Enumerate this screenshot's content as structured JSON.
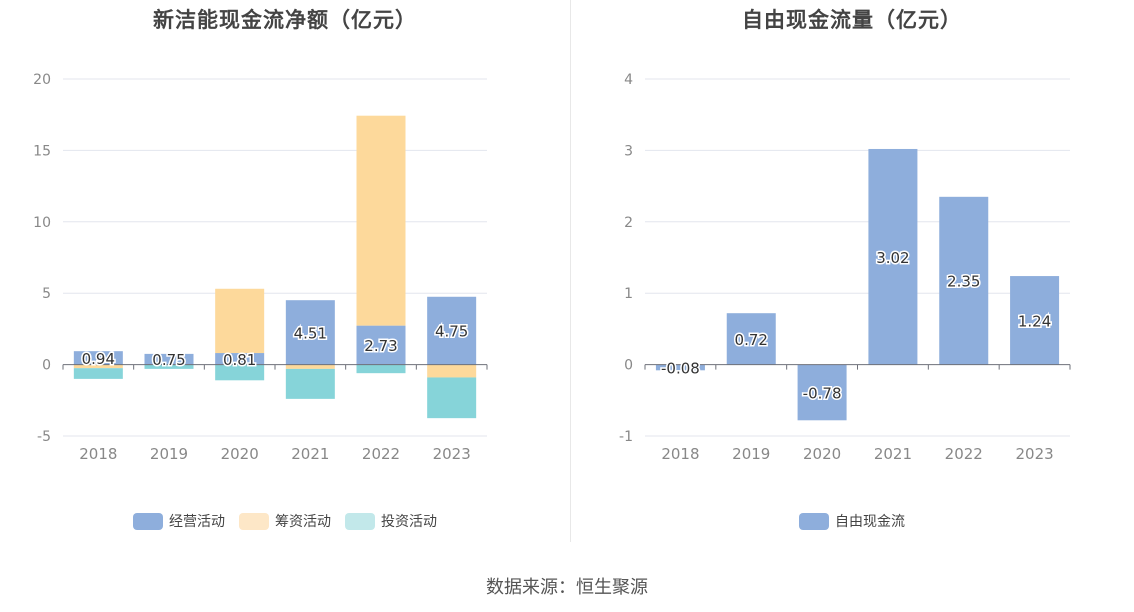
{
  "source_text": "数据来源：恒生聚源",
  "chart_data": [
    {
      "type": "bar",
      "stacked": true,
      "title": "新洁能现金流净额（亿元）",
      "categories": [
        "2018",
        "2019",
        "2020",
        "2021",
        "2022",
        "2023"
      ],
      "ylim": [
        -5,
        20
      ],
      "yticks": [
        -5,
        0,
        5,
        10,
        15,
        20
      ],
      "grid": true,
      "legend_position": "bottom",
      "series": [
        {
          "name": "经营活动",
          "color": "#8eaedc",
          "legend_color": "#8eaedc",
          "values": [
            0.94,
            0.75,
            0.81,
            4.51,
            2.73,
            4.75
          ],
          "labels": [
            "0.94",
            "0.75",
            "0.81",
            "4.51",
            "2.73",
            "4.75"
          ]
        },
        {
          "name": "筹资活动",
          "color": "#fdd99b",
          "legend_color": "#fde7c7",
          "values": [
            -0.25,
            0.0,
            4.5,
            -0.3,
            14.7,
            -0.9
          ]
        },
        {
          "name": "投资活动",
          "color": "#86d4d9",
          "legend_color": "#c2e8ea",
          "values": [
            -0.75,
            -0.3,
            -1.1,
            -2.1,
            -0.6,
            -2.85
          ]
        }
      ]
    },
    {
      "type": "bar",
      "title": "自由现金流量（亿元）",
      "categories": [
        "2018",
        "2019",
        "2020",
        "2021",
        "2022",
        "2023"
      ],
      "ylim": [
        -1,
        4
      ],
      "yticks": [
        -1,
        0,
        1,
        2,
        3,
        4
      ],
      "grid": true,
      "legend_position": "bottom",
      "series": [
        {
          "name": "自由现金流",
          "color": "#8eaedc",
          "legend_color": "#8eaedc",
          "values": [
            -0.08,
            0.72,
            -0.78,
            3.02,
            2.35,
            1.24
          ],
          "labels": [
            "-0.08",
            "0.72",
            "-0.78",
            "3.02",
            "2.35",
            "1.24"
          ]
        }
      ]
    }
  ]
}
